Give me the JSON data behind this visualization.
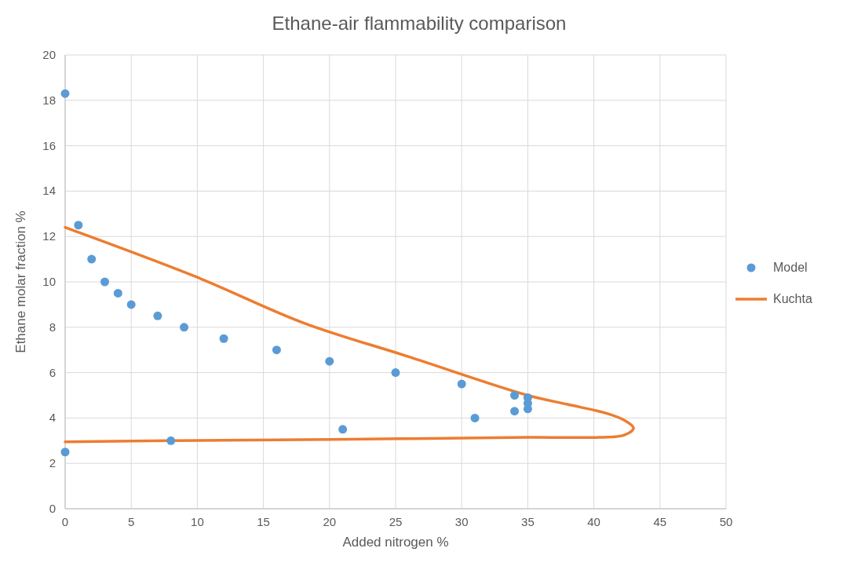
{
  "chart_data": {
    "type": "scatter",
    "title": "Ethane-air flammability comparison",
    "xlabel": "Added nitrogen %",
    "ylabel": "Ethane molar fraction %",
    "xlim": [
      0,
      50
    ],
    "xticks": [
      0,
      5,
      10,
      15,
      20,
      25,
      30,
      35,
      40,
      45,
      50
    ],
    "ylim": [
      0,
      20
    ],
    "yticks": [
      0,
      2,
      4,
      6,
      8,
      10,
      12,
      14,
      16,
      18,
      20
    ],
    "grid": true,
    "legend": "right",
    "marker": "circle",
    "series": [
      {
        "name": "Model",
        "color": "#5b9bd5",
        "x": [
          0,
          1,
          2,
          3,
          4,
          5,
          7,
          9,
          12,
          16,
          20,
          25,
          30,
          34,
          31,
          34,
          35,
          35,
          35,
          21,
          8,
          0
        ],
        "values": [
          18.3,
          12.5,
          11,
          10,
          9.5,
          9,
          8.5,
          8,
          7.5,
          7,
          6.5,
          6,
          5.5,
          5,
          4,
          4.3,
          4.4,
          4.65,
          4.9,
          3.5,
          3,
          2.5
        ]
      },
      {
        "name": "Kuchta",
        "type": "line",
        "color": "#ed7d31",
        "marker": "none",
        "line_style": "solid",
        "x": [
          0,
          10,
          18,
          26,
          35,
          38,
          41,
          42.3,
          43,
          42.3,
          40.5,
          35,
          20,
          8,
          0
        ],
        "values": [
          12.4,
          10.2,
          8.2,
          6.7,
          5,
          4.6,
          4.2,
          3.9,
          3.55,
          3.25,
          3.15,
          3.15,
          3.05,
          3,
          2.95
        ]
      }
    ]
  }
}
